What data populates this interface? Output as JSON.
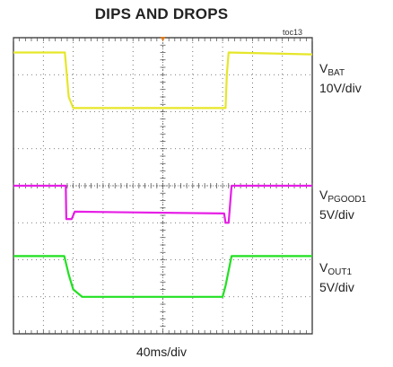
{
  "chart_data": {
    "type": "line",
    "title": "DIPS AND DROPS",
    "tag": "toc13",
    "x_scale": "40ms/div",
    "divisions": {
      "x": 10,
      "y": 8
    },
    "series": [
      {
        "name": "V",
        "subscript": "BAT",
        "scale": "10V/div",
        "color": "#e6e62a",
        "x_div": [
          0,
          1.72,
          1.85,
          2.0,
          7.1,
          7.14,
          7.2,
          10
        ],
        "y_div": [
          7.6,
          7.6,
          6.4,
          6.1,
          6.1,
          7.0,
          7.6,
          7.55
        ]
      },
      {
        "name": "V",
        "subscript": "PGOOD1",
        "scale": "5V/div",
        "color": "#e61ee6",
        "x_div": [
          0,
          1.75,
          1.77,
          1.95,
          2.05,
          7.05,
          7.1,
          7.2,
          7.3,
          10
        ],
        "y_div": [
          4.0,
          4.0,
          3.1,
          3.1,
          3.3,
          3.25,
          3.0,
          3.0,
          4.0,
          4.0
        ]
      },
      {
        "name": "V",
        "subscript": "OUT1",
        "scale": "5V/div",
        "color": "#22e022",
        "x_div": [
          0,
          1.7,
          1.85,
          2.0,
          2.3,
          7.0,
          7.1,
          7.3,
          10
        ],
        "y_div": [
          2.1,
          2.1,
          1.6,
          1.2,
          1.0,
          1.0,
          1.3,
          2.1,
          2.1
        ]
      }
    ]
  }
}
